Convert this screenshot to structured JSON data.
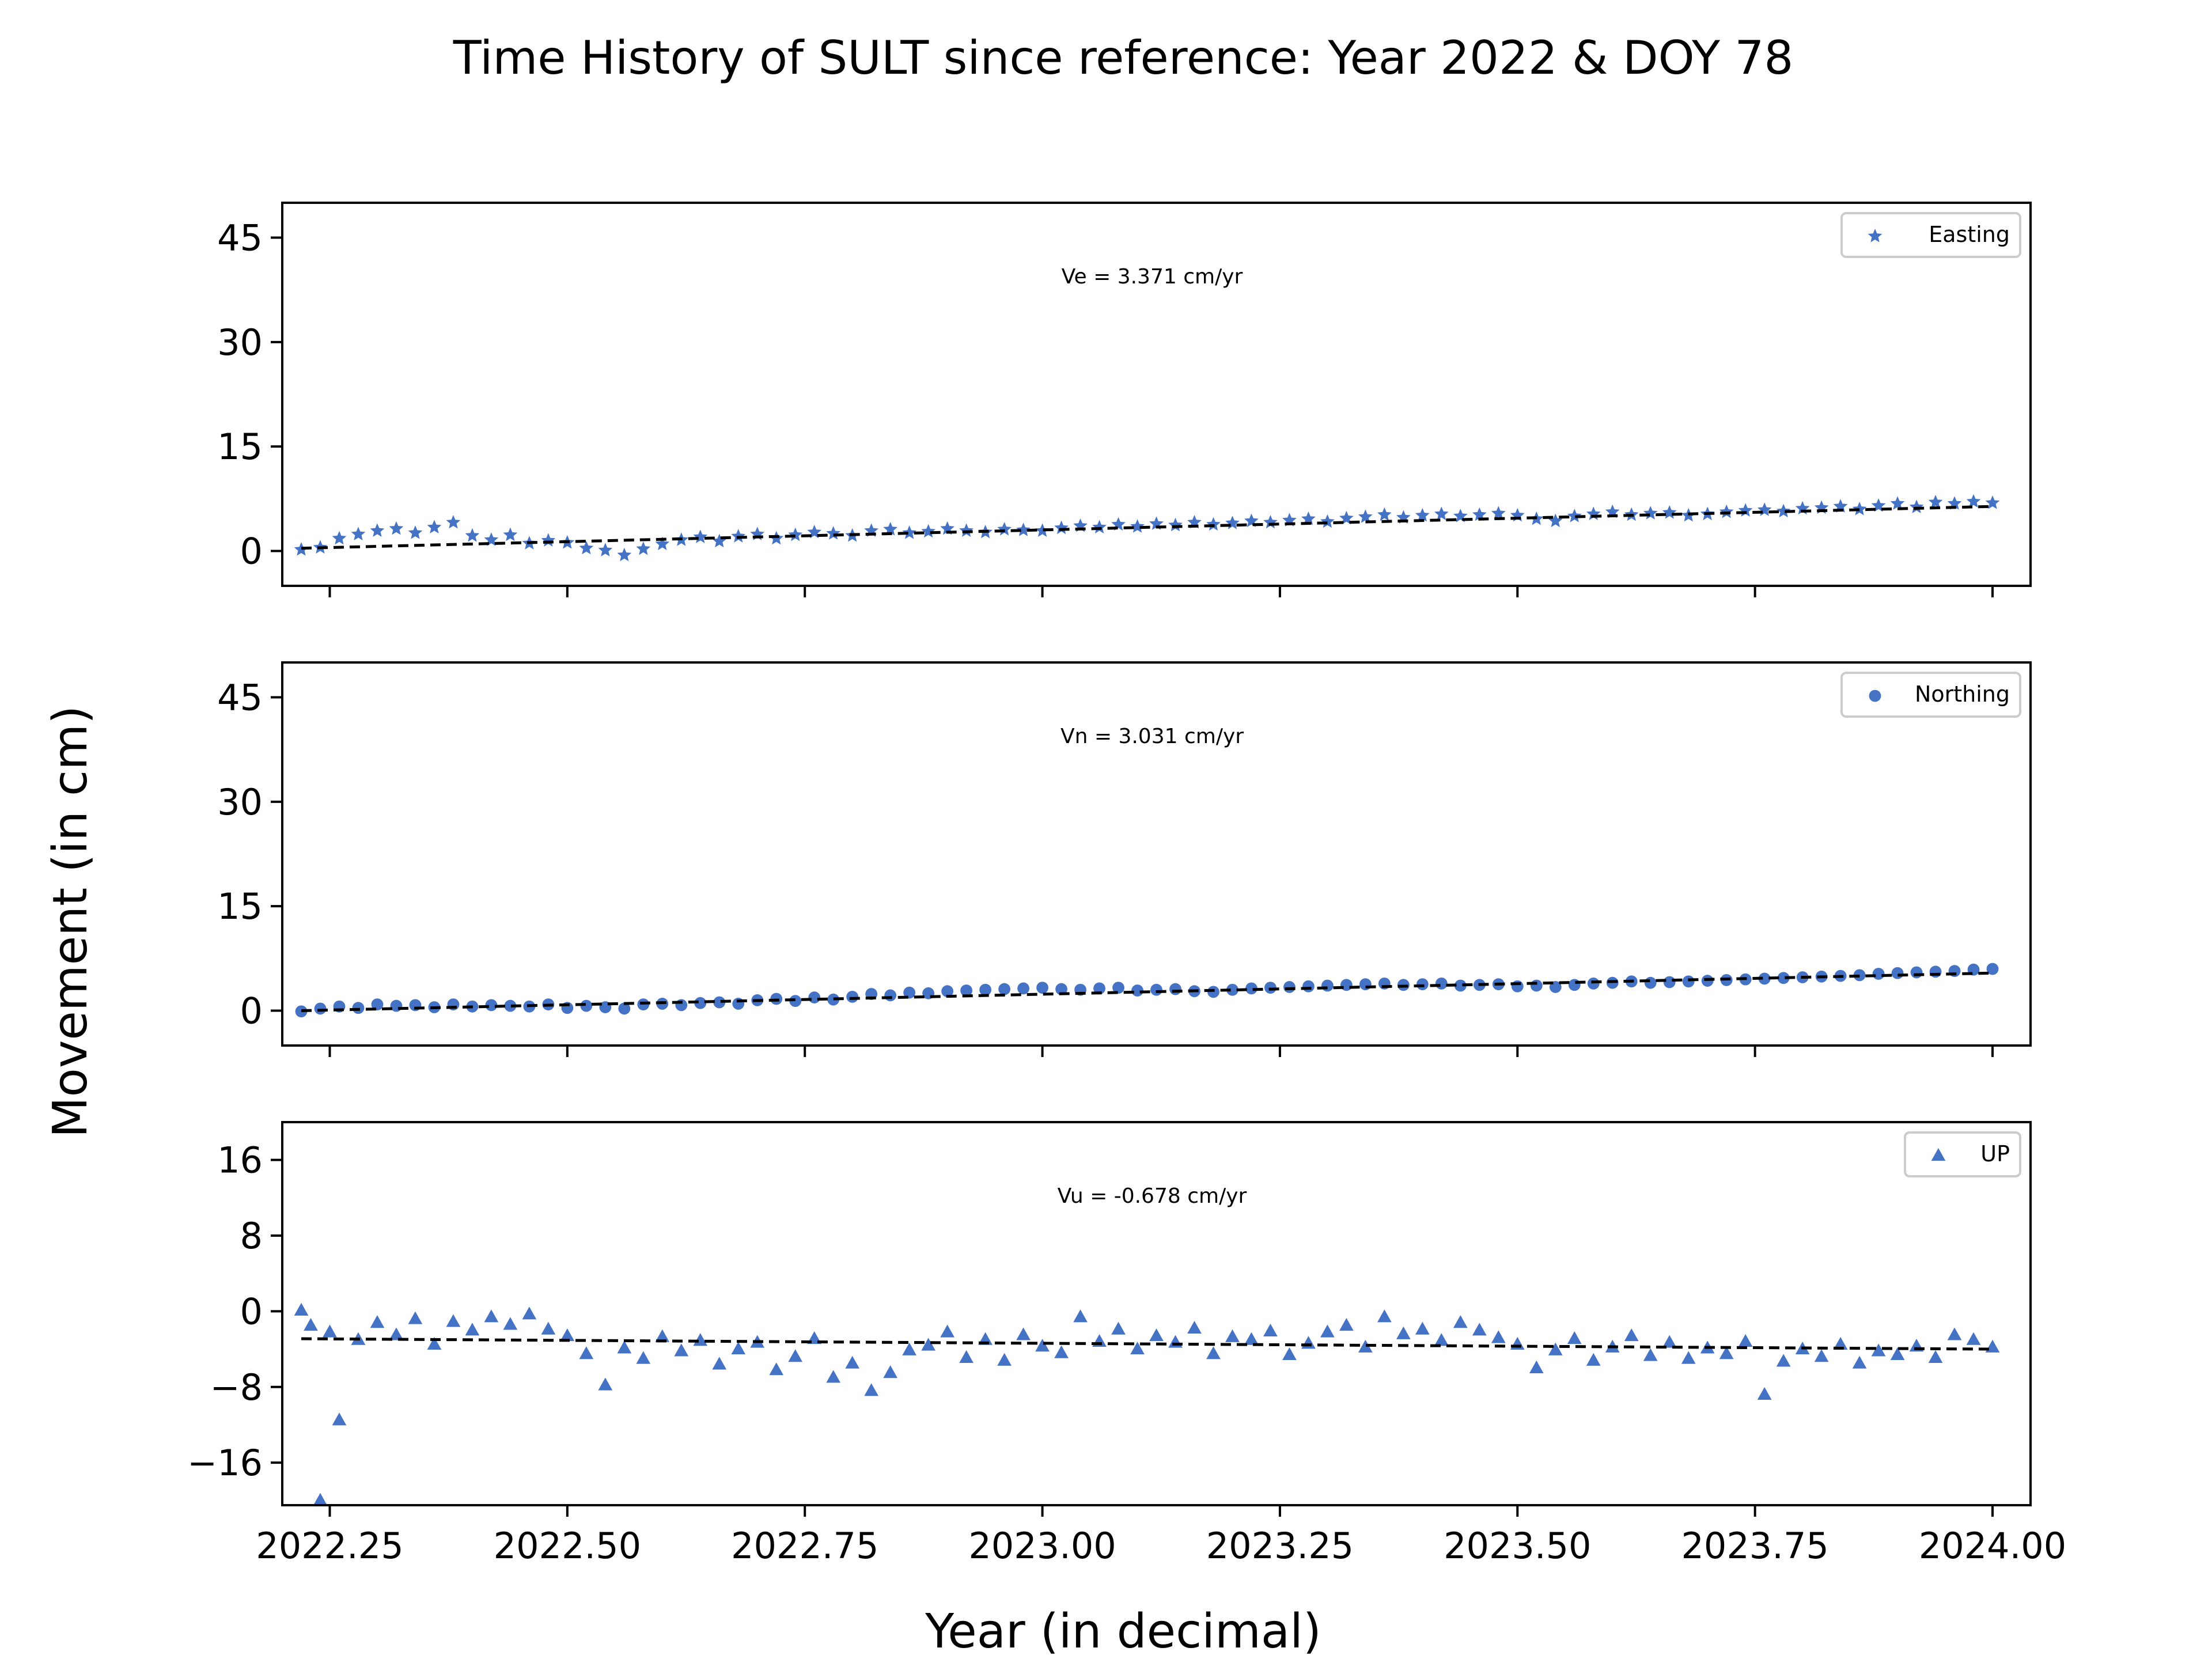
{
  "figure": {
    "title": "Time History of SULT since reference: Year 2022 & DOY 78",
    "xlabel": "Year (in decimal)",
    "ylabel": "Movement (in cm)"
  },
  "colors": {
    "points": "#4472c4",
    "trend": "#000000",
    "axes": "#000000"
  },
  "chart_data": [
    {
      "type": "scatter",
      "panel": "Easting",
      "marker": "star",
      "legend": "Easting",
      "legend_position": "upper-right",
      "annotation": "Ve =  3.371 cm/yr",
      "velocity_cm_per_yr": 3.371,
      "xlim": [
        2022.2,
        2024.04
      ],
      "ylim": [
        -5,
        50
      ],
      "yticks": [
        0,
        15,
        30,
        45
      ],
      "ytick_labels": [
        "0",
        "15",
        "30",
        "45"
      ],
      "trend": {
        "x": [
          2022.22,
          2024.0
        ],
        "y": [
          0.4,
          6.4
        ]
      },
      "series": [
        {
          "name": "Easting",
          "x": [
            2022.22,
            2022.24,
            2022.26,
            2022.28,
            2022.3,
            2022.32,
            2022.34,
            2022.36,
            2022.38,
            2022.4,
            2022.42,
            2022.44,
            2022.46,
            2022.48,
            2022.5,
            2022.52,
            2022.54,
            2022.56,
            2022.58,
            2022.6,
            2022.62,
            2022.64,
            2022.66,
            2022.68,
            2022.7,
            2022.72,
            2022.74,
            2022.76,
            2022.78,
            2022.8,
            2022.82,
            2022.84,
            2022.86,
            2022.88,
            2022.9,
            2022.92,
            2022.94,
            2022.96,
            2022.98,
            2023.0,
            2023.02,
            2023.04,
            2023.06,
            2023.08,
            2023.1,
            2023.12,
            2023.14,
            2023.16,
            2023.18,
            2023.2,
            2023.22,
            2023.24,
            2023.26,
            2023.28,
            2023.3,
            2023.32,
            2023.34,
            2023.36,
            2023.38,
            2023.4,
            2023.42,
            2023.44,
            2023.46,
            2023.48,
            2023.5,
            2023.52,
            2023.54,
            2023.56,
            2023.58,
            2023.6,
            2023.62,
            2023.64,
            2023.66,
            2023.68,
            2023.7,
            2023.72,
            2023.74,
            2023.76,
            2023.78,
            2023.8,
            2023.82,
            2023.84,
            2023.86,
            2023.88,
            2023.9,
            2023.92,
            2023.94,
            2023.96,
            2023.98,
            2024.0
          ],
          "y": [
            0.2,
            0.5,
            1.8,
            2.4,
            2.9,
            3.2,
            2.6,
            3.4,
            4.1,
            2.2,
            1.6,
            2.3,
            1.1,
            1.5,
            1.2,
            0.4,
            0.1,
            -0.6,
            0.3,
            1.0,
            1.6,
            2.0,
            1.4,
            2.1,
            2.4,
            1.8,
            2.3,
            2.7,
            2.5,
            2.2,
            2.9,
            3.1,
            2.6,
            2.8,
            3.2,
            2.9,
            2.7,
            3.1,
            3.0,
            2.9,
            3.3,
            3.6,
            3.4,
            3.8,
            3.5,
            3.9,
            3.7,
            4.1,
            3.8,
            4.0,
            4.3,
            4.1,
            4.4,
            4.6,
            4.2,
            4.7,
            4.9,
            5.2,
            4.8,
            5.1,
            5.3,
            5.0,
            5.2,
            5.4,
            5.1,
            4.6,
            4.3,
            5.0,
            5.3,
            5.6,
            5.2,
            5.4,
            5.5,
            5.1,
            5.3,
            5.6,
            5.8,
            5.9,
            5.7,
            6.1,
            6.2,
            6.4,
            6.0,
            6.5,
            6.8,
            6.3,
            7.0,
            6.8,
            7.1,
            6.9
          ]
        }
      ]
    },
    {
      "type": "scatter",
      "panel": "Northing",
      "marker": "circle",
      "legend": "Northing",
      "legend_position": "upper-right",
      "annotation": "Vn =  3.031 cm/yr",
      "velocity_cm_per_yr": 3.031,
      "xlim": [
        2022.2,
        2024.04
      ],
      "ylim": [
        -5,
        50
      ],
      "yticks": [
        0,
        15,
        30,
        45
      ],
      "ytick_labels": [
        "0",
        "15",
        "30",
        "45"
      ],
      "trend": {
        "x": [
          2022.22,
          2024.0
        ],
        "y": [
          0.0,
          5.4
        ]
      },
      "series": [
        {
          "name": "Northing",
          "x": [
            2022.22,
            2022.24,
            2022.26,
            2022.28,
            2022.3,
            2022.32,
            2022.34,
            2022.36,
            2022.38,
            2022.4,
            2022.42,
            2022.44,
            2022.46,
            2022.48,
            2022.5,
            2022.52,
            2022.54,
            2022.56,
            2022.58,
            2022.6,
            2022.62,
            2022.64,
            2022.66,
            2022.68,
            2022.7,
            2022.72,
            2022.74,
            2022.76,
            2022.78,
            2022.8,
            2022.82,
            2022.84,
            2022.86,
            2022.88,
            2022.9,
            2022.92,
            2022.94,
            2022.96,
            2022.98,
            2023.0,
            2023.02,
            2023.04,
            2023.06,
            2023.08,
            2023.1,
            2023.12,
            2023.14,
            2023.16,
            2023.18,
            2023.2,
            2023.22,
            2023.24,
            2023.26,
            2023.28,
            2023.3,
            2023.32,
            2023.34,
            2023.36,
            2023.38,
            2023.4,
            2023.42,
            2023.44,
            2023.46,
            2023.48,
            2023.5,
            2023.52,
            2023.54,
            2023.56,
            2023.58,
            2023.6,
            2023.62,
            2023.64,
            2023.66,
            2023.68,
            2023.7,
            2023.72,
            2023.74,
            2023.76,
            2023.78,
            2023.8,
            2023.82,
            2023.84,
            2023.86,
            2023.88,
            2023.9,
            2023.92,
            2023.94,
            2023.96,
            2023.98,
            2024.0
          ],
          "y": [
            -0.1,
            0.3,
            0.6,
            0.4,
            0.9,
            0.7,
            0.8,
            0.5,
            0.9,
            0.6,
            0.8,
            0.7,
            0.6,
            0.9,
            0.4,
            0.7,
            0.5,
            0.3,
            0.9,
            1.0,
            0.8,
            1.1,
            1.2,
            1.0,
            1.5,
            1.7,
            1.4,
            1.9,
            1.6,
            2.0,
            2.4,
            2.2,
            2.6,
            2.5,
            2.8,
            2.9,
            3.0,
            3.1,
            3.2,
            3.3,
            3.1,
            3.0,
            3.2,
            3.3,
            2.9,
            3.0,
            3.1,
            2.8,
            2.7,
            3.0,
            3.2,
            3.3,
            3.4,
            3.5,
            3.6,
            3.7,
            3.8,
            3.9,
            3.7,
            3.8,
            3.9,
            3.6,
            3.7,
            3.8,
            3.5,
            3.6,
            3.4,
            3.7,
            3.9,
            4.0,
            4.2,
            4.0,
            4.1,
            4.2,
            4.3,
            4.4,
            4.5,
            4.6,
            4.7,
            4.8,
            4.9,
            5.0,
            5.1,
            5.3,
            5.4,
            5.5,
            5.6,
            5.7,
            5.9,
            6.0
          ]
        }
      ]
    },
    {
      "type": "scatter",
      "panel": "UP",
      "marker": "triangle",
      "legend": "UP",
      "legend_position": "upper-right",
      "annotation": "Vu = -0.678 cm/yr",
      "velocity_cm_per_yr": -0.678,
      "xlim": [
        2022.2,
        2024.04
      ],
      "ylim": [
        -20.5,
        20
      ],
      "yticks": [
        -16,
        -8,
        0,
        8,
        16
      ],
      "ytick_labels": [
        "−16",
        "−8",
        "0",
        "8",
        "16"
      ],
      "xticks": [
        2022.25,
        2022.5,
        2022.75,
        2023.0,
        2023.25,
        2023.5,
        2023.75,
        2024.0
      ],
      "xtick_labels": [
        "2022.25",
        "2022.50",
        "2022.75",
        "2023.00",
        "2023.25",
        "2023.50",
        "2023.75",
        "2024.00"
      ],
      "trend": {
        "x": [
          2022.22,
          2024.0
        ],
        "y": [
          -2.9,
          -4.0
        ]
      },
      "series": [
        {
          "name": "UP",
          "x": [
            2022.22,
            2022.23,
            2022.24,
            2022.25,
            2022.26,
            2022.28,
            2022.3,
            2022.32,
            2022.34,
            2022.36,
            2022.38,
            2022.4,
            2022.42,
            2022.44,
            2022.46,
            2022.48,
            2022.5,
            2022.52,
            2022.54,
            2022.56,
            2022.58,
            2022.6,
            2022.62,
            2022.64,
            2022.66,
            2022.68,
            2022.7,
            2022.72,
            2022.74,
            2022.76,
            2022.78,
            2022.8,
            2022.82,
            2022.84,
            2022.86,
            2022.88,
            2022.9,
            2022.92,
            2022.94,
            2022.96,
            2022.98,
            2023.0,
            2023.02,
            2023.04,
            2023.06,
            2023.08,
            2023.1,
            2023.12,
            2023.14,
            2023.16,
            2023.18,
            2023.2,
            2023.22,
            2023.24,
            2023.26,
            2023.28,
            2023.3,
            2023.32,
            2023.34,
            2023.36,
            2023.38,
            2023.4,
            2023.42,
            2023.44,
            2023.46,
            2023.48,
            2023.5,
            2023.52,
            2023.54,
            2023.56,
            2023.58,
            2023.6,
            2023.62,
            2023.64,
            2023.66,
            2023.68,
            2023.7,
            2023.72,
            2023.74,
            2023.76,
            2023.78,
            2023.8,
            2023.82,
            2023.84,
            2023.86,
            2023.88,
            2023.9,
            2023.92,
            2023.94,
            2023.96,
            2023.98,
            2024.0
          ],
          "y": [
            0.1,
            -1.5,
            -20.0,
            -2.2,
            -11.5,
            -3.0,
            -1.2,
            -2.5,
            -0.8,
            -3.5,
            -1.1,
            -2.0,
            -0.6,
            -1.4,
            -0.3,
            -1.9,
            -2.6,
            -4.5,
            -7.8,
            -3.9,
            -5.0,
            -2.7,
            -4.2,
            -3.1,
            -5.6,
            -4.0,
            -3.3,
            -6.2,
            -4.8,
            -2.9,
            -7.0,
            -5.5,
            -8.4,
            -6.5,
            -4.1,
            -3.6,
            -2.2,
            -4.9,
            -3.0,
            -5.2,
            -2.5,
            -3.7,
            -4.4,
            -0.6,
            -3.2,
            -1.9,
            -4.0,
            -2.6,
            -3.3,
            -1.8,
            -4.5,
            -2.7,
            -3.0,
            -2.1,
            -4.6,
            -3.4,
            -2.2,
            -1.5,
            -3.8,
            -0.6,
            -2.4,
            -1.9,
            -3.1,
            -1.2,
            -2.0,
            -2.8,
            -3.5,
            -6.0,
            -4.1,
            -2.9,
            -5.2,
            -3.8,
            -2.6,
            -4.7,
            -3.3,
            -5.0,
            -3.9,
            -4.5,
            -3.2,
            -8.8,
            -5.3,
            -4.0,
            -4.8,
            -3.5,
            -5.5,
            -4.2,
            -4.6,
            -3.7,
            -4.9,
            -2.5,
            -3.0,
            -3.8
          ]
        }
      ]
    }
  ]
}
